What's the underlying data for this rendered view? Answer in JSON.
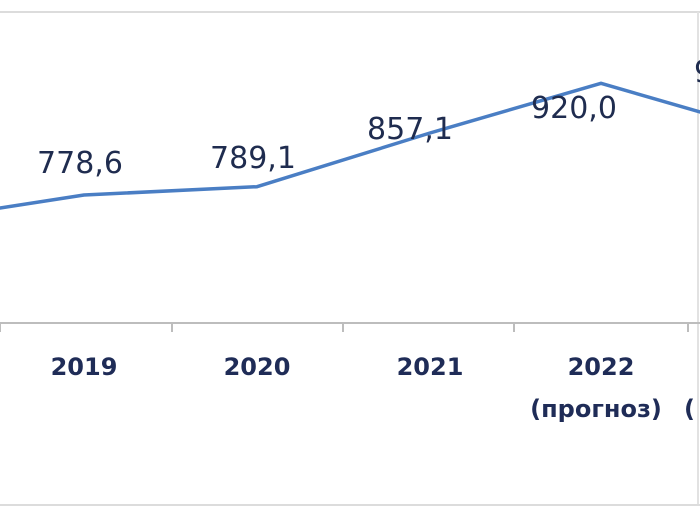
{
  "chart_data": {
    "type": "line",
    "categories": [
      "",
      "2019",
      "2020",
      "2021",
      "2022",
      ""
    ],
    "sublabels": [
      "",
      "",
      "",
      "",
      "(прогноз)",
      "("
    ],
    "values": [
      null,
      778.6,
      789.1,
      857.1,
      920.0,
      null
    ],
    "data_labels": [
      "",
      "778,6",
      "789,1",
      "857,1",
      "920,0",
      "9"
    ],
    "title": "",
    "xlabel": "",
    "ylabel": "",
    "grid": false,
    "colors": {
      "line": "#4a7ec4",
      "labels": "#1f2c57",
      "axis": "#c8c8c8"
    }
  }
}
